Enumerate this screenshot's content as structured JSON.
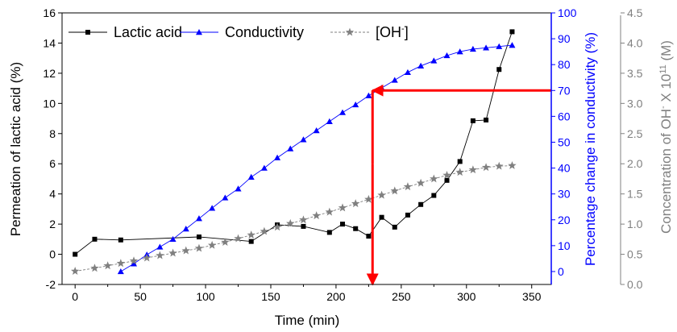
{
  "chart_data": {
    "type": "line",
    "title": "",
    "xlabel": "Time (min)",
    "x_ticks": [
      "0",
      "50",
      "100",
      "150",
      "200",
      "250",
      "300",
      "350"
    ],
    "xlim": [
      -10,
      365
    ],
    "axes": {
      "left": {
        "label": "Permeation of lactic acid (%)",
        "ylim": [
          -2,
          16
        ],
        "ticks": [
          "-2",
          "0",
          "2",
          "4",
          "6",
          "8",
          "10",
          "12",
          "14",
          "16"
        ],
        "color": "#000000"
      },
      "right1": {
        "label": "Percentage change in conductivity (%)",
        "ylim": [
          -5,
          100
        ],
        "ticks": [
          "0",
          "10",
          "20",
          "30",
          "40",
          "50",
          "60",
          "70",
          "80",
          "90",
          "100"
        ],
        "color": "#0000ff"
      },
      "right2": {
        "label_main": "Concentration of OH",
        "label_sup1": "-",
        "label_mid": " X 10",
        "label_sup2": "11",
        "label_end": " (M)",
        "ylim": [
          0,
          4.5
        ],
        "ticks": [
          "0.0",
          "0.5",
          "1.0",
          "1.5",
          "2.0",
          "2.5",
          "3.0",
          "3.5",
          "4.0",
          "4.5"
        ],
        "color": "#808080"
      }
    },
    "legend": {
      "placement": "top-left",
      "entries": [
        {
          "name": "Lactic acid",
          "color": "#000000",
          "marker": "square"
        },
        {
          "name": "Conductivity",
          "color": "#0000ff",
          "marker": "triangle"
        },
        {
          "name": "[OH",
          "sup": "-",
          "close": "]",
          "color": "#808080",
          "marker": "star"
        }
      ]
    },
    "series": [
      {
        "name": "Lactic acid",
        "axis": "left",
        "color": "#000000",
        "marker": "square",
        "x": [
          0,
          15,
          35,
          95,
          135,
          155,
          175,
          195,
          205,
          215,
          225,
          235,
          245,
          255,
          265,
          275,
          285,
          295,
          305,
          315,
          325,
          335
        ],
        "y": [
          0.0,
          1.0,
          0.95,
          1.15,
          0.85,
          1.95,
          1.85,
          1.45,
          2.0,
          1.7,
          1.2,
          2.45,
          1.8,
          2.6,
          3.3,
          3.9,
          4.9,
          6.15,
          8.85,
          8.9,
          12.25,
          14.75
        ]
      },
      {
        "name": "Conductivity",
        "axis": "right1",
        "color": "#0000ff",
        "marker": "triangle",
        "x": [
          35,
          45,
          55,
          65,
          75,
          85,
          95,
          105,
          115,
          125,
          135,
          145,
          155,
          165,
          175,
          185,
          195,
          205,
          215,
          225,
          235,
          245,
          255,
          265,
          275,
          285,
          295,
          305,
          315,
          325,
          335
        ],
        "y": [
          0,
          3,
          6.5,
          9.5,
          12.5,
          16.5,
          20.5,
          24.5,
          28.5,
          32,
          36.5,
          40,
          44,
          47.5,
          51,
          54.5,
          58,
          61.5,
          64.5,
          68,
          71,
          74,
          77,
          79.5,
          81.5,
          83.5,
          85,
          86,
          86.5,
          87,
          87.5
        ]
      },
      {
        "name": "[OH-]",
        "axis": "right2",
        "color": "#808080",
        "marker": "star",
        "x": [
          0,
          15,
          25,
          35,
          45,
          55,
          65,
          75,
          85,
          95,
          105,
          115,
          125,
          135,
          145,
          155,
          165,
          175,
          185,
          195,
          205,
          215,
          225,
          235,
          245,
          255,
          265,
          275,
          285,
          295,
          305,
          315,
          325,
          335
        ],
        "y": [
          0.22,
          0.27,
          0.31,
          0.35,
          0.39,
          0.44,
          0.48,
          0.52,
          0.56,
          0.6,
          0.65,
          0.7,
          0.76,
          0.82,
          0.88,
          0.95,
          1.01,
          1.07,
          1.14,
          1.2,
          1.27,
          1.34,
          1.41,
          1.48,
          1.55,
          1.62,
          1.68,
          1.75,
          1.81,
          1.86,
          1.9,
          1.94,
          1.96,
          1.97
        ]
      }
    ],
    "annotations": [
      {
        "type": "arrow",
        "color": "#ff0000",
        "from": {
          "x": 365,
          "axis": "right1",
          "y": 70
        },
        "to": {
          "x": 228,
          "axis": "right1",
          "y": 70
        }
      },
      {
        "type": "line",
        "color": "#ff0000",
        "from": {
          "x": 228,
          "axis": "right1",
          "y": 70
        },
        "to": {
          "x": 228,
          "axis": "left",
          "y": 6
        }
      },
      {
        "type": "arrow",
        "color": "#ff0000",
        "from": {
          "x": 228,
          "axis": "left",
          "y": 6
        },
        "to": {
          "x": 228,
          "axis": "left",
          "y": -2
        }
      }
    ]
  }
}
